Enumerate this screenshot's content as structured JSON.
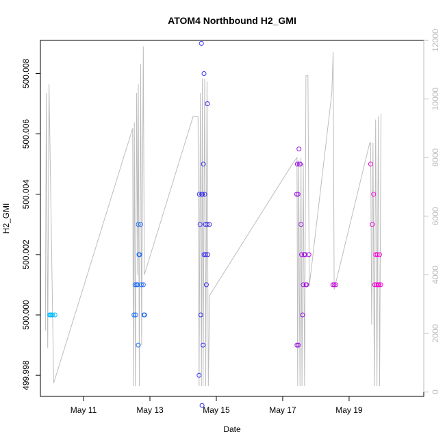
{
  "chart_data": {
    "type": "scatter",
    "title": "ATOM4 Northbound H2_GMI",
    "xlabel": "Date",
    "ylabel": "H2_GMI",
    "x_ticks": [
      "May 11",
      "May 13",
      "May 15",
      "May 17",
      "May 19"
    ],
    "x_tick_values": [
      11,
      13,
      15,
      17,
      19
    ],
    "xlim": [
      9.7,
      21.25
    ],
    "ylim": [
      499.9973,
      500.0091
    ],
    "y_ticks": [
      "499.998",
      "500.000",
      "500.002",
      "500.004",
      "500.006",
      "500.008"
    ],
    "y_tick_values": [
      499.998,
      500.0,
      500.002,
      500.004,
      500.006,
      500.008
    ],
    "y2lim": [
      -150,
      12000
    ],
    "y2_ticks": [
      "0",
      "2000",
      "4000",
      "6000",
      "8000",
      "10000",
      "12000"
    ],
    "y2_tick_values": [
      0,
      2000,
      4000,
      6000,
      8000,
      10000,
      12000
    ],
    "colors": {
      "early": "#00bfff",
      "mid": "#3a22f0",
      "late": "#ff00d8",
      "line": "#bdbdbd",
      "frame": "#000000"
    },
    "series": [
      {
        "marker": "circle-open",
        "points": [
          [
            9.98,
            500.0
          ],
          [
            10.0,
            500.0
          ],
          [
            10.03,
            500.0
          ],
          [
            10.06,
            500.0
          ],
          [
            10.14,
            500.0
          ],
          [
            12.52,
            500.0
          ],
          [
            12.55,
            500.001
          ],
          [
            12.57,
            500.0
          ],
          [
            12.6,
            500.001
          ],
          [
            12.63,
            500.001
          ],
          [
            12.65,
            500.003
          ],
          [
            12.65,
            499.999
          ],
          [
            12.67,
            500.002
          ],
          [
            12.69,
            500.002
          ],
          [
            12.72,
            500.003
          ],
          [
            12.74,
            500.001
          ],
          [
            12.8,
            500.001
          ],
          [
            12.82,
            500.0
          ],
          [
            12.84,
            500.0
          ],
          [
            14.48,
            499.998
          ],
          [
            14.49,
            500.004
          ],
          [
            14.51,
            500.003
          ],
          [
            14.53,
            500.0
          ],
          [
            14.55,
            500.009
          ],
          [
            14.56,
            500.004
          ],
          [
            14.57,
            499.997
          ],
          [
            14.58,
            500.004
          ],
          [
            14.6,
            499.999
          ],
          [
            14.61,
            500.005
          ],
          [
            14.63,
            500.008
          ],
          [
            14.63,
            500.002
          ],
          [
            14.65,
            500.004
          ],
          [
            14.67,
            500.003
          ],
          [
            14.68,
            500.002
          ],
          [
            14.7,
            500.001
          ],
          [
            14.72,
            500.003
          ],
          [
            14.73,
            500.007
          ],
          [
            14.74,
            500.002
          ],
          [
            14.79,
            500.003
          ],
          [
            17.42,
            500.004
          ],
          [
            17.43,
            499.999
          ],
          [
            17.44,
            500.005
          ],
          [
            17.46,
            500.004
          ],
          [
            17.47,
            499.999
          ],
          [
            17.49,
            500.0055
          ],
          [
            17.5,
            500.005
          ],
          [
            17.53,
            500.005
          ],
          [
            17.55,
            500.003
          ],
          [
            17.57,
            500.002
          ],
          [
            17.6,
            500.0
          ],
          [
            17.62,
            500.001
          ],
          [
            17.65,
            500.002
          ],
          [
            17.68,
            500.002
          ],
          [
            17.7,
            500.001
          ],
          [
            17.72,
            500.001
          ],
          [
            17.79,
            500.002
          ],
          [
            18.51,
            500.001
          ],
          [
            18.55,
            500.001
          ],
          [
            18.6,
            500.001
          ],
          [
            19.65,
            500.005
          ],
          [
            19.7,
            500.003
          ],
          [
            19.74,
            500.004
          ],
          [
            19.77,
            500.001
          ],
          [
            19.8,
            500.002
          ],
          [
            19.82,
            500.001
          ],
          [
            19.85,
            500.002
          ],
          [
            19.87,
            500.001
          ],
          [
            19.9,
            500.001
          ],
          [
            19.92,
            500.002
          ],
          [
            19.95,
            500.001
          ]
        ]
      }
    ],
    "line_series": {
      "axis": "right",
      "points": [
        [
          9.85,
          2100
        ],
        [
          9.88,
          10200
        ],
        [
          9.92,
          1500
        ],
        [
          9.96,
          10500
        ],
        [
          10.1,
          300
        ],
        [
          12.48,
          9000
        ],
        [
          12.5,
          200
        ],
        [
          12.53,
          9200
        ],
        [
          12.56,
          200
        ],
        [
          12.6,
          10200
        ],
        [
          12.63,
          4000
        ],
        [
          12.65,
          10500
        ],
        [
          12.68,
          200
        ],
        [
          12.72,
          11200
        ],
        [
          12.75,
          1600
        ],
        [
          12.8,
          11800
        ],
        [
          12.83,
          4000
        ],
        [
          14.3,
          9400
        ],
        [
          14.45,
          9400
        ],
        [
          14.48,
          200
        ],
        [
          14.52,
          10200
        ],
        [
          14.55,
          200
        ],
        [
          14.58,
          10700
        ],
        [
          14.6,
          200
        ],
        [
          14.65,
          10700
        ],
        [
          14.68,
          200
        ],
        [
          14.72,
          10600
        ],
        [
          14.76,
          200
        ],
        [
          14.8,
          3300
        ],
        [
          17.3,
          7800
        ],
        [
          17.43,
          8000
        ],
        [
          17.45,
          200
        ],
        [
          17.48,
          7900
        ],
        [
          17.52,
          200
        ],
        [
          17.55,
          8000
        ],
        [
          17.58,
          200
        ],
        [
          17.62,
          7800
        ],
        [
          17.66,
          200
        ],
        [
          17.7,
          10800
        ],
        [
          17.76,
          10800
        ],
        [
          17.8,
          3600
        ],
        [
          18.48,
          10200
        ],
        [
          18.52,
          11600
        ],
        [
          18.55,
          3500
        ],
        [
          19.62,
          8500
        ],
        [
          19.65,
          8500
        ],
        [
          19.68,
          2300
        ],
        [
          19.72,
          8500
        ],
        [
          19.76,
          200
        ],
        [
          19.8,
          9300
        ],
        [
          19.84,
          200
        ],
        [
          19.88,
          9400
        ],
        [
          19.92,
          200
        ],
        [
          19.96,
          9500
        ]
      ]
    },
    "grid": false,
    "legend": "none"
  }
}
